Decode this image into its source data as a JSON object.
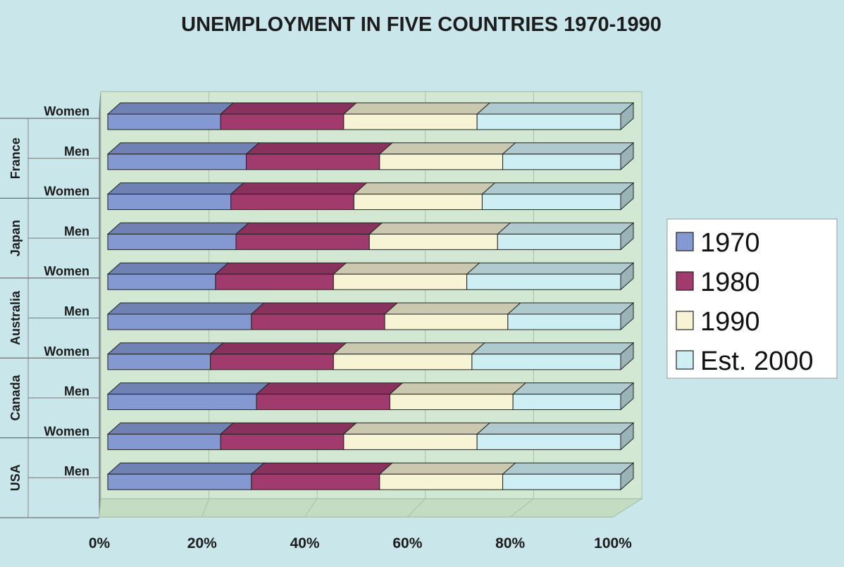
{
  "chart_data": {
    "type": "bar",
    "stacked": "100%",
    "orientation": "horizontal",
    "title": "UNEMPLOYMENT IN FIVE COUNTRIES 1970-1990",
    "xlim": [
      0,
      100
    ],
    "x_ticks": [
      "0%",
      "20%",
      "40%",
      "60%",
      "80%",
      "100%"
    ],
    "groups": [
      {
        "country": "France",
        "rows": [
          {
            "label": "Women",
            "values": [
              22,
              24,
              26,
              28
            ]
          },
          {
            "label": "Men",
            "values": [
              27,
              26,
              24,
              23
            ]
          }
        ]
      },
      {
        "country": "Japan",
        "rows": [
          {
            "label": "Women",
            "values": [
              24,
              24,
              25,
              27
            ]
          },
          {
            "label": "Men",
            "values": [
              25,
              26,
              25,
              24
            ]
          }
        ]
      },
      {
        "country": "Australia",
        "rows": [
          {
            "label": "Women",
            "values": [
              21,
              23,
              26,
              30
            ]
          },
          {
            "label": "Men",
            "values": [
              28,
              26,
              24,
              22
            ]
          }
        ]
      },
      {
        "country": "Canada",
        "rows": [
          {
            "label": "Women",
            "values": [
              20,
              24,
              27,
              29
            ]
          },
          {
            "label": "Men",
            "values": [
              29,
              26,
              24,
              21
            ]
          }
        ]
      },
      {
        "country": "USA",
        "rows": [
          {
            "label": "Women",
            "values": [
              22,
              24,
              26,
              28
            ]
          },
          {
            "label": "Men",
            "values": [
              28,
              25,
              24,
              23
            ]
          }
        ]
      }
    ],
    "series": [
      {
        "name": "1970",
        "color": "#8498d2"
      },
      {
        "name": "1980",
        "color": "#a13b6e"
      },
      {
        "name": "1990",
        "color": "#f6f4d4"
      },
      {
        "name": "Est. 2000",
        "color": "#cdeef2"
      }
    ],
    "legend": "right",
    "grid": true
  }
}
